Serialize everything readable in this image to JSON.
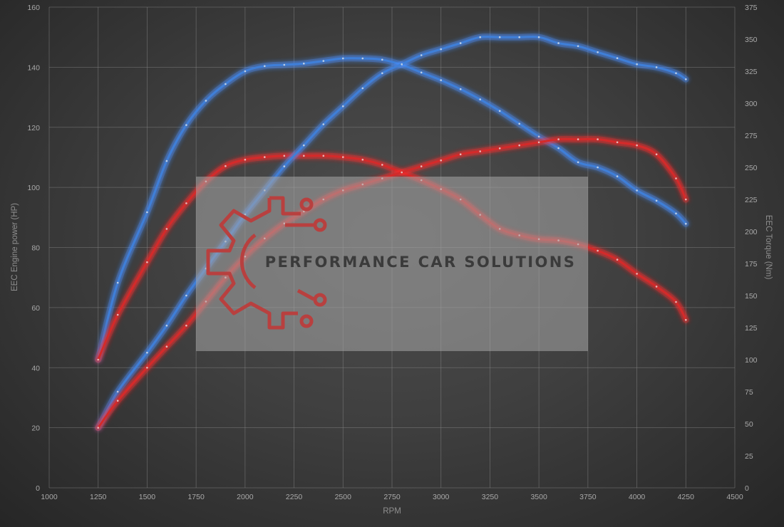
{
  "chart_data": {
    "type": "line",
    "title": "",
    "xlabel": "RPM",
    "ylabel_left": "EEC Engine power (HP)",
    "ylabel_right": "EEC Torque (Nm)",
    "xlim": [
      1000,
      4500
    ],
    "ylim_left": [
      0,
      160
    ],
    "ylim_right": [
      0,
      375
    ],
    "x_ticks": [
      1000,
      1250,
      1500,
      1750,
      2000,
      2250,
      2500,
      2750,
      3000,
      3250,
      3500,
      3750,
      4000,
      4250,
      4500
    ],
    "y_left_ticks": [
      0,
      20,
      40,
      60,
      80,
      100,
      120,
      140,
      160
    ],
    "y_right_ticks": [
      0,
      25,
      50,
      75,
      100,
      125,
      150,
      175,
      200,
      225,
      250,
      275,
      300,
      325,
      350,
      375
    ],
    "grid": true,
    "series": [
      {
        "color": "#3f7fd8",
        "glow": "#4a90ff",
        "axis": "right",
        "x": [
          1250,
          1350,
          1500,
          1600,
          1700,
          1800,
          1900,
          2000,
          2100,
          2200,
          2300,
          2400,
          2500,
          2600,
          2700,
          2800,
          2900,
          3000,
          3100,
          3200,
          3300,
          3400,
          3500,
          3600,
          3700,
          3800,
          3900,
          4000,
          4100,
          4200,
          4250
        ],
        "values": [
          100,
          160,
          215,
          255,
          283,
          302,
          315,
          325,
          329,
          330,
          331,
          333,
          335,
          335,
          334,
          330,
          324,
          318,
          311,
          303,
          294,
          284,
          274,
          265,
          254,
          250,
          243,
          232,
          224,
          214,
          206
        ]
      },
      {
        "color": "#d42a2a",
        "glow": "#ff3030",
        "axis": "right",
        "x": [
          1250,
          1350,
          1500,
          1600,
          1700,
          1800,
          1900,
          2000,
          2100,
          2200,
          2300,
          2400,
          2500,
          2600,
          2700,
          2800,
          2900,
          3000,
          3100,
          3200,
          3300,
          3400,
          3500,
          3600,
          3700,
          3800,
          3900,
          4000,
          4100,
          4200,
          4250
        ],
        "values": [
          100,
          135,
          176,
          202,
          222,
          239,
          251,
          256,
          258,
          259,
          259,
          259,
          258,
          256,
          252,
          246,
          240,
          233,
          225,
          213,
          202,
          197,
          194,
          193,
          190,
          185,
          178,
          167,
          157,
          145,
          131
        ]
      },
      {
        "color": "#3f7fd8",
        "glow": "#4a90ff",
        "axis": "left",
        "x": [
          1250,
          1350,
          1500,
          1600,
          1700,
          1800,
          1900,
          2000,
          2100,
          2200,
          2300,
          2400,
          2500,
          2600,
          2700,
          2800,
          2900,
          3000,
          3100,
          3200,
          3300,
          3400,
          3500,
          3600,
          3700,
          3800,
          3900,
          4000,
          4100,
          4200,
          4250
        ],
        "values": [
          20,
          32,
          45,
          54,
          64,
          73,
          82,
          91,
          99,
          107,
          114,
          121,
          127,
          133,
          138,
          141,
          144,
          146,
          148,
          150,
          150,
          150,
          150,
          148,
          147,
          145,
          143,
          141,
          140,
          138,
          136
        ]
      },
      {
        "color": "#d42a2a",
        "glow": "#ff3030",
        "axis": "left",
        "x": [
          1250,
          1350,
          1500,
          1600,
          1700,
          1800,
          1900,
          2000,
          2100,
          2200,
          2300,
          2400,
          2500,
          2600,
          2700,
          2800,
          2900,
          3000,
          3100,
          3200,
          3300,
          3400,
          3500,
          3600,
          3700,
          3800,
          3900,
          4000,
          4100,
          4200,
          4250
        ],
        "values": [
          20,
          29,
          40,
          47,
          54,
          62,
          70,
          77,
          83,
          88,
          92,
          96,
          99,
          101,
          103,
          105,
          107,
          109,
          111,
          112,
          113,
          114,
          115,
          116,
          116,
          116,
          115,
          114,
          111,
          103,
          96
        ]
      }
    ]
  },
  "watermark": {
    "text": "PERFORMANCE CAR SOLUTIONS",
    "logo_color": "#b8403f",
    "panel_color": "#a8a8a8"
  }
}
